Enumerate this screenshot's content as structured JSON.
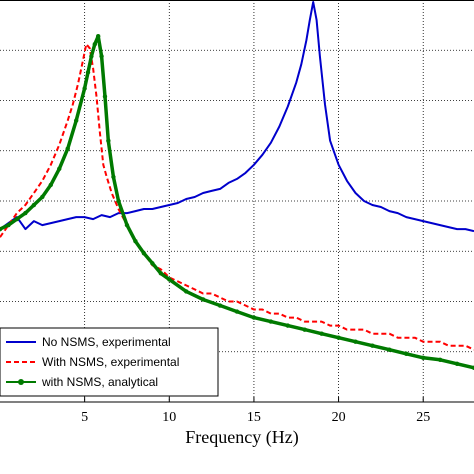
{
  "chart_data": {
    "type": "line",
    "title": "",
    "xlabel": "Frequency (Hz)",
    "ylabel": "",
    "xlim": [
      0,
      28
    ],
    "ylim": [
      0,
      1
    ],
    "grid": true,
    "legend_position": "bottom-left",
    "x_ticks": [
      "5",
      "10",
      "15",
      "20",
      "25"
    ],
    "x_tick_values": [
      5,
      10,
      15,
      20,
      25
    ],
    "y_gridlines": [
      0.125,
      0.25,
      0.375,
      0.5,
      0.625,
      0.75,
      0.875
    ],
    "series": [
      {
        "name": "No NSMS, experimental",
        "color": "#0000cc",
        "style": "solid",
        "x": [
          0,
          0.5,
          1.0,
          1.5,
          2.0,
          2.5,
          3.0,
          3.5,
          4.0,
          4.5,
          5.0,
          5.5,
          6.0,
          6.5,
          7.0,
          7.5,
          8.0,
          8.5,
          9.0,
          9.5,
          10.0,
          10.5,
          11.0,
          11.5,
          12.0,
          12.5,
          13.0,
          13.5,
          14.0,
          14.5,
          15.0,
          15.5,
          16.0,
          16.5,
          17.0,
          17.5,
          17.8,
          18.1,
          18.3,
          18.5,
          18.7,
          18.9,
          19.2,
          19.5,
          20.0,
          20.5,
          21.0,
          21.5,
          22.0,
          22.5,
          23.0,
          23.5,
          24.0,
          24.5,
          25.0,
          25.5,
          26.0,
          26.5,
          27.0,
          27.5,
          28.0
        ],
        "y": [
          0.43,
          0.445,
          0.46,
          0.43,
          0.45,
          0.44,
          0.445,
          0.45,
          0.455,
          0.46,
          0.46,
          0.455,
          0.465,
          0.46,
          0.47,
          0.47,
          0.475,
          0.48,
          0.48,
          0.485,
          0.49,
          0.495,
          0.505,
          0.51,
          0.52,
          0.525,
          0.53,
          0.545,
          0.555,
          0.57,
          0.59,
          0.615,
          0.645,
          0.685,
          0.735,
          0.795,
          0.84,
          0.9,
          0.95,
          0.995,
          0.95,
          0.86,
          0.74,
          0.65,
          0.59,
          0.55,
          0.52,
          0.5,
          0.49,
          0.485,
          0.475,
          0.47,
          0.46,
          0.455,
          0.45,
          0.445,
          0.44,
          0.435,
          0.43,
          0.43,
          0.425
        ]
      },
      {
        "name": "With NSMS, experimental",
        "color": "#ff0000",
        "style": "dashed",
        "x": [
          0,
          0.5,
          1.0,
          1.5,
          2.0,
          2.5,
          3.0,
          3.5,
          4.0,
          4.3,
          4.6,
          4.9,
          5.1,
          5.3,
          5.5,
          5.7,
          5.9,
          6.1,
          6.3,
          6.6,
          7.0,
          7.5,
          8.0,
          8.5,
          9.0,
          9.5,
          10.0,
          10.5,
          11.0,
          11.5,
          12.0,
          12.5,
          13.0,
          13.5,
          14.0,
          14.5,
          15.0,
          15.5,
          16.0,
          16.5,
          17.0,
          17.5,
          18.0,
          18.5,
          19.0,
          19.5,
          20.0,
          20.5,
          21.0,
          21.5,
          22.0,
          22.5,
          23.0,
          23.5,
          24.0,
          24.5,
          25.0,
          25.5,
          26.0,
          26.5,
          27.0,
          27.5,
          28.0
        ],
        "y": [
          0.41,
          0.44,
          0.47,
          0.49,
          0.52,
          0.55,
          0.59,
          0.64,
          0.7,
          0.74,
          0.79,
          0.85,
          0.89,
          0.88,
          0.83,
          0.76,
          0.67,
          0.59,
          0.56,
          0.52,
          0.48,
          0.44,
          0.4,
          0.37,
          0.34,
          0.33,
          0.31,
          0.3,
          0.29,
          0.28,
          0.27,
          0.27,
          0.26,
          0.25,
          0.25,
          0.24,
          0.23,
          0.23,
          0.22,
          0.22,
          0.21,
          0.21,
          0.2,
          0.2,
          0.2,
          0.19,
          0.19,
          0.18,
          0.18,
          0.18,
          0.17,
          0.17,
          0.17,
          0.16,
          0.16,
          0.16,
          0.15,
          0.15,
          0.15,
          0.14,
          0.14,
          0.14,
          0.13
        ]
      },
      {
        "name": "with NSMS, analytical",
        "color": "#007a00",
        "style": "solid-dots",
        "x": [
          0,
          0.5,
          1.0,
          1.5,
          2.0,
          2.5,
          3.0,
          3.5,
          4.0,
          4.5,
          5.0,
          5.2,
          5.4,
          5.6,
          5.8,
          6.0,
          6.2,
          6.4,
          6.7,
          7.0,
          7.5,
          8.0,
          8.5,
          9.0,
          9.5,
          10.0,
          11.0,
          12.0,
          13.0,
          14.0,
          15.0,
          16.0,
          17.0,
          18.0,
          19.0,
          20.0,
          21.0,
          22.0,
          23.0,
          24.0,
          25.0,
          26.0,
          27.0,
          28.0
        ],
        "y": [
          0.43,
          0.44,
          0.455,
          0.47,
          0.49,
          0.51,
          0.54,
          0.58,
          0.63,
          0.7,
          0.78,
          0.82,
          0.86,
          0.89,
          0.91,
          0.86,
          0.76,
          0.65,
          0.56,
          0.5,
          0.44,
          0.4,
          0.37,
          0.345,
          0.32,
          0.305,
          0.275,
          0.255,
          0.24,
          0.225,
          0.21,
          0.2,
          0.19,
          0.18,
          0.17,
          0.16,
          0.15,
          0.14,
          0.13,
          0.12,
          0.11,
          0.105,
          0.095,
          0.085
        ]
      }
    ]
  }
}
